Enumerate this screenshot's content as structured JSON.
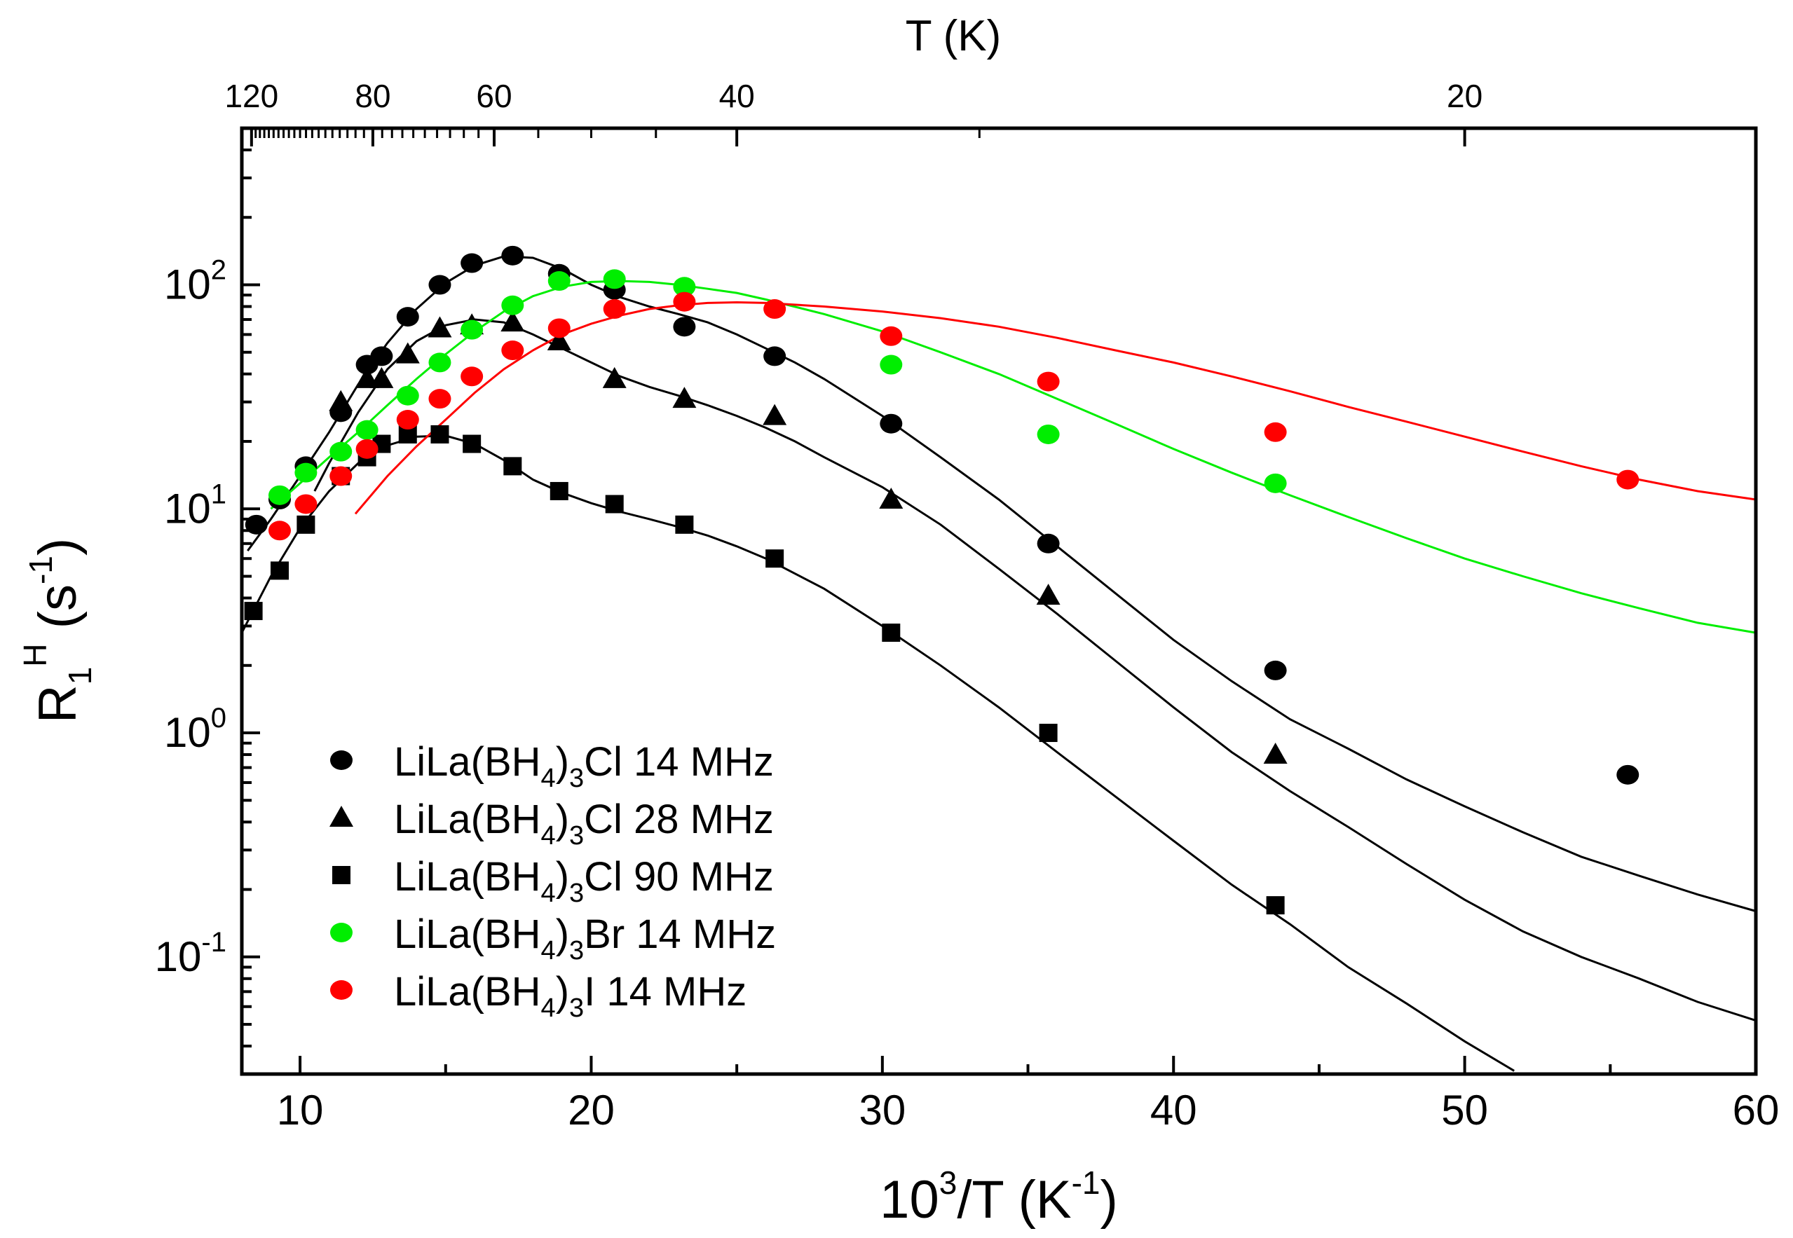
{
  "chart_data": {
    "type": "scatter",
    "yscale": "log",
    "xlim": [
      8,
      60
    ],
    "ylim": [
      0.03,
      500
    ],
    "xlabel": {
      "base": "10",
      "sup": "3",
      "rest": "/T  (K",
      "sup2": "-1",
      "end": ")"
    },
    "ylabel": {
      "base": "R",
      "sub": "1",
      "sup": "H",
      "rest": "  (s",
      "sup2": "-1",
      "end": ")"
    },
    "top_axis_label": "T  (K)",
    "x_ticks": [
      10,
      20,
      30,
      40,
      50,
      60
    ],
    "x_tick_labels": [
      "10",
      "20",
      "30",
      "40",
      "50",
      "60"
    ],
    "top_ticks": [
      {
        "T": 120,
        "label": "120"
      },
      {
        "T": 80,
        "label": "80"
      },
      {
        "T": 60,
        "label": "60"
      },
      {
        "T": 40,
        "label": "40"
      },
      {
        "T": 20,
        "label": "20"
      }
    ],
    "y_ticks": [
      {
        "value": 100,
        "base": "10",
        "exp": "2"
      },
      {
        "value": 10,
        "base": "10",
        "exp": "1"
      },
      {
        "value": 1,
        "base": "10",
        "exp": "0"
      },
      {
        "value": 0.1,
        "base": "10",
        "exp": "-1"
      }
    ],
    "series": [
      {
        "name": "LiLa(BH4)3Cl 14 MHz",
        "legend": {
          "pre": "LiLa(BH",
          "sub1": "4",
          "mid": ")",
          "sub2": "3",
          "post": "Cl  14 MHz"
        },
        "marker": "circle",
        "color": "#000000",
        "x": [
          8.5,
          9.3,
          10.2,
          11.4,
          12.3,
          12.8,
          13.7,
          14.8,
          15.9,
          17.3,
          18.9,
          20.8,
          23.2,
          26.3,
          30.3,
          35.7,
          43.5,
          55.6
        ],
        "y": [
          8.5,
          11,
          15.5,
          27,
          44,
          48,
          72,
          100,
          125,
          135,
          112,
          95,
          65,
          48,
          24,
          7,
          1.9,
          0.65
        ],
        "fit_x": [
          8.2,
          9,
          10,
          11,
          12,
          13,
          14,
          15,
          16,
          17,
          18,
          19,
          20,
          21,
          22,
          23,
          24,
          25,
          26,
          27,
          28,
          30,
          32,
          34,
          36,
          38,
          40,
          42,
          44,
          46,
          48,
          50,
          52,
          54,
          56,
          58,
          60
        ],
        "fit_y": [
          6.5,
          9,
          14,
          22,
          36,
          55,
          78,
          102,
          122,
          134,
          132,
          118,
          100,
          88,
          80,
          74,
          68,
          60,
          52,
          45,
          38,
          26,
          17,
          11,
          6.8,
          4.2,
          2.6,
          1.7,
          1.15,
          0.85,
          0.62,
          0.47,
          0.36,
          0.28,
          0.23,
          0.19,
          0.16
        ]
      },
      {
        "name": "LiLa(BH4)3Cl 28 MHz",
        "legend": {
          "pre": "LiLa(BH",
          "sub1": "4",
          "mid": ")",
          "sub2": "3",
          "post": "Cl  28 MHz"
        },
        "marker": "triangle",
        "color": "#000000",
        "x": [
          11.4,
          12.3,
          12.8,
          13.7,
          14.8,
          15.9,
          17.3,
          18.9,
          20.8,
          23.2,
          26.3,
          30.3,
          35.7,
          43.5
        ],
        "y": [
          30,
          38,
          38,
          49,
          64,
          66,
          68,
          56,
          38,
          31,
          26,
          11,
          4.1,
          0.8
        ],
        "fit_x": [
          10.5,
          11,
          12,
          13,
          14,
          15,
          16,
          17,
          18,
          19,
          20,
          21,
          22,
          23,
          24,
          25,
          26,
          27,
          28,
          30,
          32,
          34,
          36,
          38,
          40,
          42,
          44,
          46,
          48,
          50,
          52,
          54,
          56,
          58,
          60
        ],
        "fit_y": [
          12,
          16,
          27,
          42,
          56,
          66,
          70,
          68,
          60,
          52,
          45,
          39,
          35,
          32,
          29,
          26,
          23,
          20,
          17,
          12.5,
          8.5,
          5.4,
          3.4,
          2.1,
          1.3,
          0.82,
          0.55,
          0.38,
          0.26,
          0.18,
          0.13,
          0.1,
          0.08,
          0.063,
          0.052
        ]
      },
      {
        "name": "LiLa(BH4)3Cl 90 MHz",
        "legend": {
          "pre": "LiLa(BH",
          "sub1": "4",
          "mid": ")",
          "sub2": "3",
          "post": "Cl  90 MHz"
        },
        "marker": "square",
        "color": "#000000",
        "x": [
          8.4,
          9.3,
          10.2,
          11.4,
          12.3,
          12.8,
          13.7,
          14.8,
          15.9,
          17.3,
          18.9,
          20.8,
          23.2,
          26.3,
          30.3,
          35.7,
          43.5
        ],
        "y": [
          3.5,
          5.3,
          8.5,
          14,
          17,
          19.5,
          21.5,
          21.5,
          19.5,
          15.5,
          12,
          10.5,
          8.5,
          6,
          2.8,
          1.0,
          0.17
        ],
        "fit_x": [
          8,
          9,
          10,
          11,
          12,
          13,
          14,
          15,
          16,
          17,
          18,
          19,
          20,
          21,
          22,
          23,
          24,
          25,
          26,
          28,
          30,
          32,
          34,
          36,
          38,
          40,
          42,
          44,
          46,
          48,
          50,
          51.7
        ],
        "fit_y": [
          2.8,
          5,
          8.2,
          12,
          16,
          19.2,
          21,
          21.2,
          19.5,
          16.5,
          13.5,
          11.8,
          10.6,
          9.7,
          9,
          8.3,
          7.6,
          6.8,
          6,
          4.4,
          3.0,
          2.0,
          1.3,
          0.82,
          0.52,
          0.33,
          0.21,
          0.14,
          0.09,
          0.062,
          0.042,
          0.031
        ]
      },
      {
        "name": "LiLa(BH4)3Br 14 MHz",
        "legend": {
          "pre": "LiLa(BH",
          "sub1": "4",
          "mid": ")",
          "sub2": "3",
          "post": "Br  14 MHz"
        },
        "marker": "circle",
        "color": "#00ee00",
        "x": [
          9.3,
          10.2,
          11.4,
          12.3,
          13.7,
          14.8,
          15.9,
          17.3,
          18.9,
          20.8,
          23.2,
          30.3,
          35.7,
          43.5
        ],
        "y": [
          11.5,
          14.5,
          18,
          22.5,
          32,
          45,
          63,
          81,
          104,
          106,
          98,
          44,
          21.5,
          13
        ],
        "fit_x": [
          9,
          10,
          11,
          12,
          13,
          14,
          15,
          16,
          17,
          18,
          19,
          20,
          21,
          22,
          23,
          24,
          25,
          26,
          28,
          30,
          32,
          34,
          36,
          38,
          40,
          42,
          44,
          46,
          48,
          50,
          52,
          54,
          56,
          58,
          60
        ],
        "fit_y": [
          10,
          13,
          17,
          22,
          29,
          38,
          49,
          62,
          76,
          89,
          98,
          103,
          104,
          103,
          100,
          96,
          92,
          86,
          74,
          62,
          50,
          40,
          31,
          24,
          18.5,
          14.5,
          11.5,
          9.2,
          7.4,
          6.0,
          5.0,
          4.2,
          3.6,
          3.1,
          2.8
        ]
      },
      {
        "name": "LiLa(BH4)3I 14 MHz",
        "legend": {
          "pre": "LiLa(BH",
          "sub1": "4",
          "mid": ")",
          "sub2": "3",
          "post": "I  14 MHz"
        },
        "marker": "circle",
        "color": "#ff0000",
        "x": [
          9.3,
          10.2,
          11.4,
          12.3,
          13.7,
          14.8,
          15.9,
          17.3,
          18.9,
          20.8,
          23.2,
          26.3,
          30.3,
          35.7,
          43.5,
          55.6
        ],
        "y": [
          8,
          10.5,
          14,
          18.5,
          25,
          31,
          39,
          51,
          64,
          78,
          84,
          78,
          59,
          37,
          22,
          13.5
        ],
        "fit_x": [
          11.9,
          13,
          14,
          15,
          16,
          17,
          18,
          19,
          20,
          21,
          22,
          23,
          24,
          25,
          26,
          28,
          30,
          32,
          34,
          36,
          38,
          40,
          42,
          44,
          46,
          48,
          50,
          52,
          54,
          56,
          58,
          60
        ],
        "fit_y": [
          9.5,
          14,
          19,
          25,
          33,
          42,
          51,
          60,
          67,
          73,
          78,
          81,
          83,
          83.5,
          83,
          80,
          76,
          71,
          65,
          58,
          51,
          45,
          39,
          33.5,
          28.5,
          24.5,
          21,
          18,
          15.5,
          13.5,
          12,
          11
        ]
      }
    ]
  }
}
